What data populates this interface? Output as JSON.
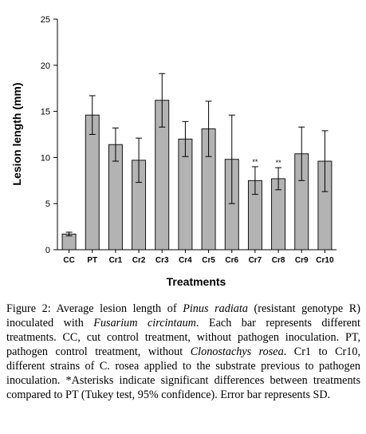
{
  "chart_data": {
    "type": "bar",
    "categories": [
      "CC",
      "PT",
      "Cr1",
      "Cr2",
      "Cr3",
      "Cr4",
      "Cr5",
      "Cr6",
      "Cr7",
      "Cr8",
      "Cr9",
      "Cr10"
    ],
    "values": [
      1.7,
      14.6,
      11.4,
      9.7,
      16.2,
      12.0,
      13.1,
      9.8,
      7.5,
      7.7,
      10.4,
      9.6
    ],
    "error": [
      0.2,
      2.1,
      1.8,
      2.4,
      2.9,
      1.9,
      3.0,
      4.8,
      1.5,
      1.2,
      2.9,
      3.3
    ],
    "significance": [
      "",
      "",
      "",
      "",
      "",
      "",
      "",
      "",
      "**",
      "**",
      "",
      ""
    ],
    "xlabel": "Treatments",
    "ylabel": "Lesion length (mm)",
    "ylim": [
      0,
      25
    ],
    "yticks": [
      0,
      5,
      10,
      15,
      20,
      25
    ],
    "bar_color": "#b3b3b3",
    "grid": false
  },
  "caption": {
    "label": "Figure 2:",
    "segments": [
      {
        "text": " Average lesion length of ",
        "italic": false
      },
      {
        "text": "Pinus radiata",
        "italic": true
      },
      {
        "text": " (resistant genotype R) inoculated with ",
        "italic": false
      },
      {
        "text": "Fusarium circintaum",
        "italic": true
      },
      {
        "text": ". Each bar represents different treatments. CC, cut control treatment, without pathogen inoculation. PT, pathogen control treatment, without ",
        "italic": false
      },
      {
        "text": "Clonostachys rosea",
        "italic": true
      },
      {
        "text": ". Cr1 to Cr10, different strains of C. rosea applied to the substrate previous to pathogen inoculation. *Asterisks indicate significant differences between treatments compared to PT (Tukey test, 95% confidence). Error bar represents SD.",
        "italic": false
      }
    ]
  }
}
